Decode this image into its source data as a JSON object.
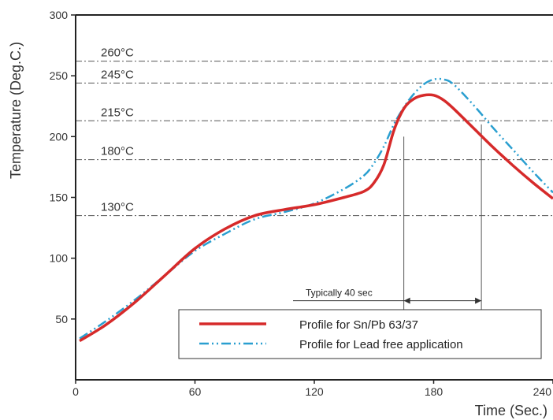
{
  "chart_data": {
    "type": "line",
    "xlabel": "Time (Sec.)",
    "ylabel": "Temperature (Deg.C.)",
    "xlim": [
      0,
      240
    ],
    "ylim": [
      0,
      300
    ],
    "x_ticks": [
      "0",
      "60",
      "120",
      "180",
      "240"
    ],
    "y_ticks": [
      "50",
      "100",
      "150",
      "200",
      "250",
      "300"
    ],
    "reference_lines": [
      {
        "value": 262,
        "label": "260°C"
      },
      {
        "value": 244,
        "label": "245°C"
      },
      {
        "value": 213,
        "label": "215°C"
      },
      {
        "value": 181,
        "label": "180°C"
      },
      {
        "value": 135,
        "label": "130°C"
      }
    ],
    "annotation": {
      "label": "Typically 40 sec",
      "x_start": 165,
      "x_end": 204,
      "y": 65
    },
    "legend_position": "bottom-center",
    "series": [
      {
        "name": "Profile for Sn/Pb 63/37",
        "color": "#d62a2a",
        "style": "solid",
        "x": [
          2,
          15,
          30,
          45,
          60,
          75,
          90,
          105,
          120,
          135,
          145,
          150,
          155,
          160,
          165,
          170,
          175,
          180,
          185,
          190,
          200,
          210,
          220,
          230,
          240
        ],
        "y": [
          32,
          45,
          64,
          86,
          108,
          124,
          135,
          140,
          144,
          150,
          155,
          162,
          177,
          205,
          223,
          231,
          234,
          234,
          230,
          223,
          207,
          191,
          176,
          162,
          149
        ]
      },
      {
        "name": "Profile for Lead free application",
        "color": "#2a9fd0",
        "style": "dashdotdot",
        "x": [
          2,
          15,
          30,
          45,
          60,
          75,
          90,
          105,
          120,
          135,
          145,
          150,
          155,
          160,
          165,
          170,
          175,
          180,
          185,
          190,
          200,
          210,
          220,
          230,
          240
        ],
        "y": [
          34,
          48,
          66,
          86,
          106,
          120,
          132,
          138,
          145,
          157,
          168,
          178,
          192,
          210,
          224,
          235,
          243,
          247,
          247,
          243,
          226,
          207,
          189,
          171,
          154
        ]
      }
    ]
  }
}
